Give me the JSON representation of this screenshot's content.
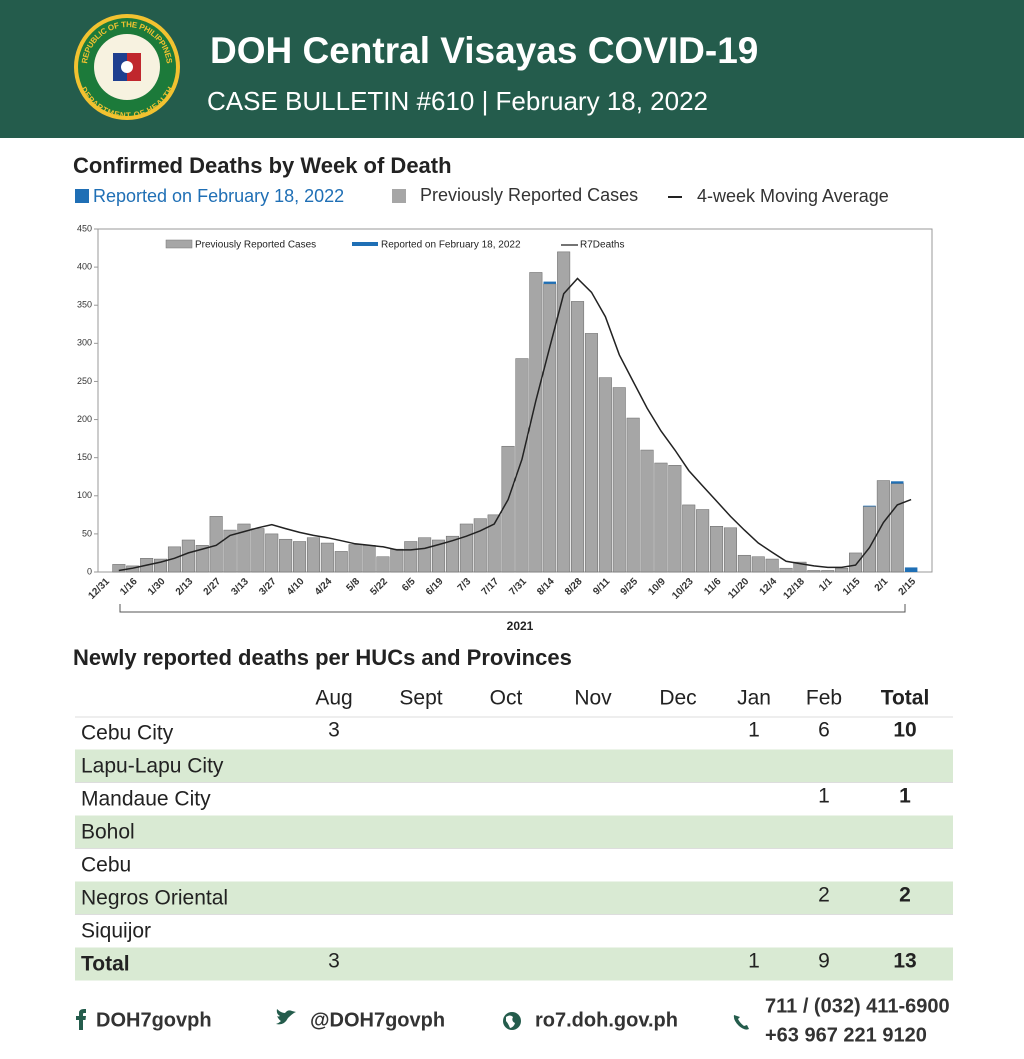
{
  "header": {
    "title": "DOH Central Visayas COVID-19",
    "subtitle": "CASE BULLETIN #610 | February 18, 2022",
    "logo_top": "REPUBLIC OF THE PHILIPPINES",
    "logo_bottom": "DEPARTMENT OF HEALTH"
  },
  "chart_data": {
    "type": "bar",
    "stacked": true,
    "title": "Confirmed Deaths by Week of Death",
    "header_legend": [
      "Reported on February 18, 2022",
      "Previously Reported Cases",
      "4-week Moving Average"
    ],
    "x_label": "2021",
    "categories": [
      "12/31",
      null,
      "1/16",
      null,
      "1/30",
      null,
      "2/13",
      null,
      "2/27",
      null,
      "3/13",
      null,
      "3/27",
      null,
      "4/10",
      null,
      "4/24",
      null,
      "5/8",
      null,
      "5/22",
      null,
      "6/5",
      null,
      "6/19",
      null,
      "7/3",
      null,
      "7/17",
      null,
      "7/31",
      null,
      "8/14",
      null,
      "8/28",
      null,
      "9/11",
      null,
      "9/25",
      null,
      "10/9",
      null,
      "10/23",
      null,
      "11/6",
      null,
      "11/20",
      null,
      "12/4",
      null,
      "12/18",
      null,
      "1/1",
      null,
      "1/15",
      null,
      "2/1",
      null,
      "2/15"
    ],
    "ylim": [
      0,
      450
    ],
    "yticks": [
      0,
      50,
      100,
      150,
      200,
      250,
      300,
      350,
      400,
      450
    ],
    "series": [
      {
        "name": "Previously Reported Cases",
        "color": "#a6a6a6",
        "values": [
          0,
          10,
          8,
          18,
          17,
          33,
          42,
          35,
          73,
          55,
          63,
          57,
          50,
          43,
          40,
          45,
          38,
          27,
          36,
          35,
          20,
          30,
          40,
          45,
          42,
          47,
          63,
          70,
          75,
          165,
          280,
          393,
          378,
          420,
          355,
          313,
          255,
          242,
          202,
          160,
          143,
          140,
          88,
          82,
          60,
          58,
          22,
          20,
          17,
          5,
          13,
          2,
          2,
          5,
          25,
          86,
          120,
          116,
          0
        ]
      },
      {
        "name": "Reported on February 18, 2022",
        "color": "#1f6fb5",
        "values": [
          0,
          0,
          0,
          0,
          0,
          0,
          0,
          0,
          0,
          0,
          0,
          0,
          0,
          0,
          0,
          0,
          0,
          0,
          0,
          0,
          0,
          0,
          0,
          0,
          0,
          0,
          0,
          0,
          0,
          0,
          0,
          0,
          3,
          0,
          0,
          0,
          0,
          0,
          0,
          0,
          0,
          0,
          0,
          0,
          0,
          0,
          0,
          0,
          0,
          0,
          0,
          0,
          0,
          0,
          0,
          1,
          0,
          3,
          6
        ]
      },
      {
        "name": "R7Deaths",
        "type": "line",
        "color": "#222222",
        "values": [
          null,
          2,
          5,
          9,
          13,
          18,
          25,
          30,
          35,
          48,
          53,
          58,
          62,
          57,
          52,
          48,
          45,
          41,
          37,
          35,
          33,
          29,
          29,
          31,
          36,
          41,
          47,
          54,
          63,
          95,
          148,
          225,
          295,
          365,
          385,
          367,
          335,
          285,
          250,
          215,
          185,
          160,
          133,
          113,
          93,
          73,
          55,
          38,
          26,
          14,
          11,
          8,
          6,
          6,
          9,
          32,
          65,
          88,
          95
        ]
      }
    ]
  },
  "table": {
    "title": "Newly reported deaths per HUCs and Provinces",
    "columns": [
      "Aug",
      "Sept",
      "Oct",
      "Nov",
      "Dec",
      "Jan",
      "Feb",
      "Total"
    ],
    "rows": [
      {
        "label": "Cebu City",
        "cells": [
          3,
          null,
          null,
          null,
          null,
          1,
          6,
          10
        ]
      },
      {
        "label": "Lapu-Lapu City",
        "cells": [
          null,
          null,
          null,
          null,
          null,
          null,
          null,
          null
        ]
      },
      {
        "label": "Mandaue City",
        "cells": [
          null,
          null,
          null,
          null,
          null,
          null,
          1,
          1
        ]
      },
      {
        "label": "Bohol",
        "cells": [
          null,
          null,
          null,
          null,
          null,
          null,
          null,
          null
        ]
      },
      {
        "label": "Cebu",
        "cells": [
          null,
          null,
          null,
          null,
          null,
          null,
          null,
          null
        ]
      },
      {
        "label": "Negros Oriental",
        "cells": [
          null,
          null,
          null,
          null,
          null,
          null,
          2,
          2
        ]
      },
      {
        "label": "Siquijor",
        "cells": [
          null,
          null,
          null,
          null,
          null,
          null,
          null,
          null
        ]
      },
      {
        "label": "Total",
        "cells": [
          3,
          null,
          null,
          null,
          null,
          1,
          9,
          13
        ]
      }
    ]
  },
  "footer": {
    "facebook": "DOH7govph",
    "twitter": "@DOH7govph",
    "website": "ro7.doh.gov.ph",
    "phone": [
      "711 / (032) 411-6900",
      "+63 967 221 9120"
    ]
  }
}
